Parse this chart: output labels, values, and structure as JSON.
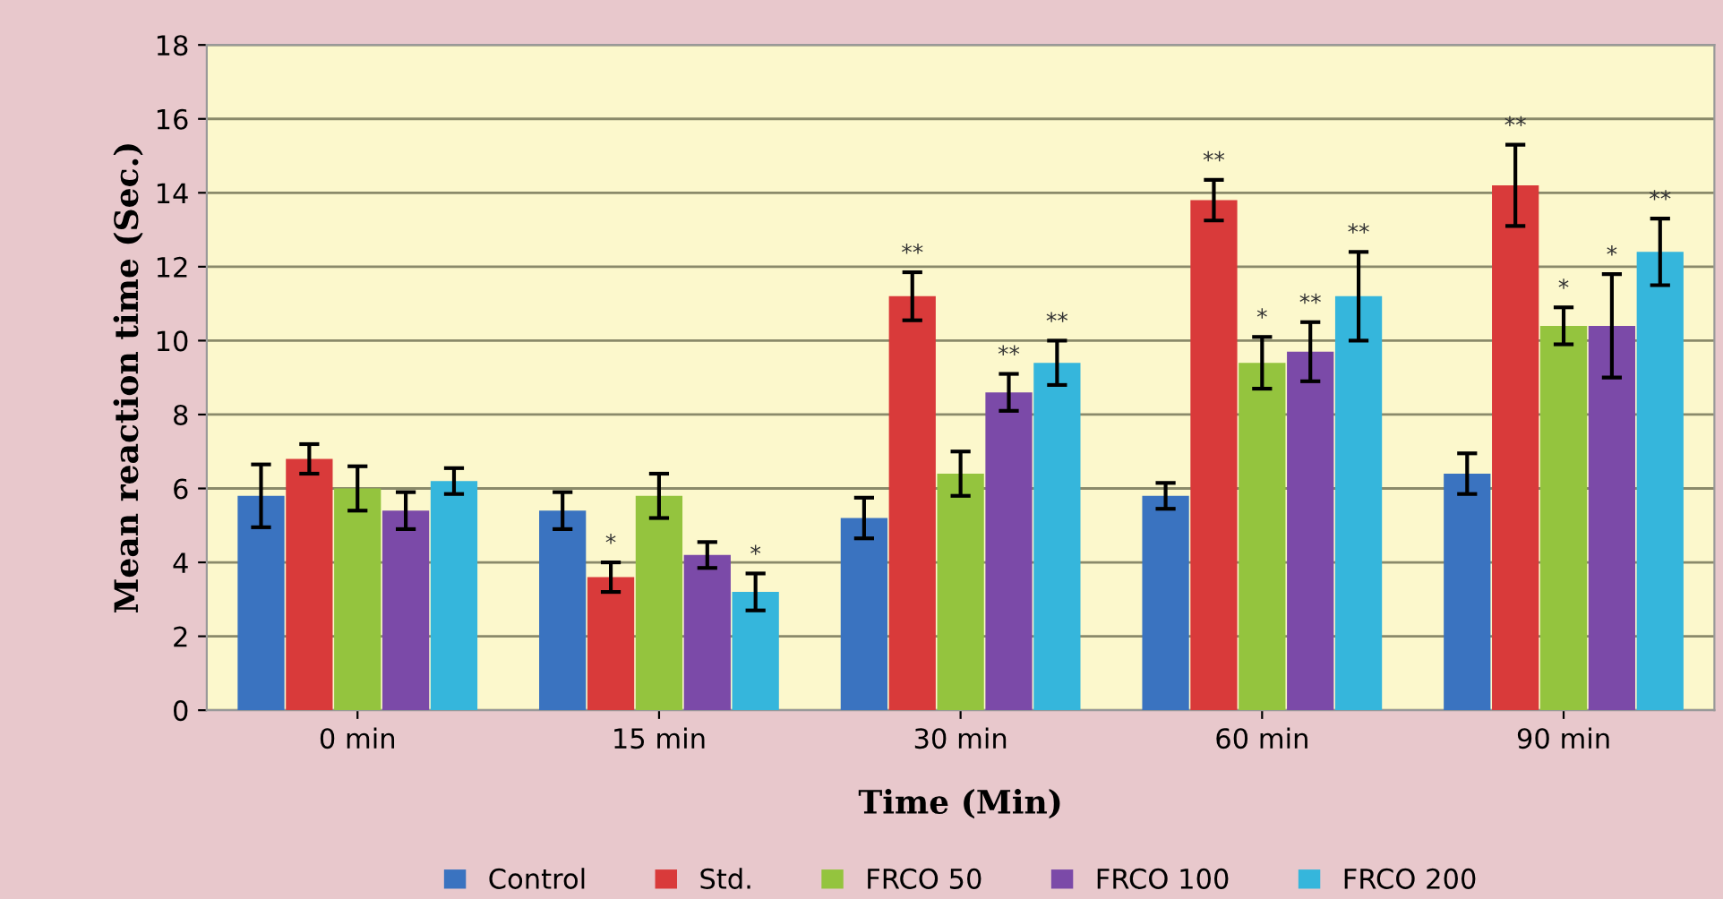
{
  "chart_data": {
    "type": "bar",
    "xlabel": "Time (Min)",
    "ylabel": "Mean reaction time (Sec.)",
    "categories": [
      "0 min",
      "15 min",
      "30 min",
      "60 min",
      "90 min"
    ],
    "ylim": [
      0,
      18
    ],
    "yticks": [
      0,
      2,
      4,
      6,
      8,
      10,
      12,
      14,
      16,
      18
    ],
    "grid": "y",
    "legend": "bottom",
    "series": [
      {
        "name": "Control",
        "color": "#3a73c0",
        "values": [
          5.8,
          5.4,
          5.2,
          5.8,
          6.4
        ],
        "errors": [
          0.85,
          0.5,
          0.55,
          0.35,
          0.55
        ],
        "value_labels": [
          null,
          null,
          null,
          null,
          null
        ]
      },
      {
        "name": "Std.",
        "color": "#d93a3a",
        "values": [
          6.8,
          3.6,
          11.2,
          13.8,
          14.2
        ],
        "errors": [
          0.4,
          0.4,
          0.65,
          0.55,
          1.1
        ],
        "value_labels": [
          null,
          "*",
          "**",
          "**",
          "**"
        ]
      },
      {
        "name": "FRCO 50",
        "color": "#94c43e",
        "values": [
          6.0,
          5.8,
          6.4,
          9.4,
          10.4
        ],
        "errors": [
          0.6,
          0.6,
          0.6,
          0.7,
          0.5
        ],
        "value_labels": [
          null,
          null,
          null,
          "*",
          "*"
        ]
      },
      {
        "name": "FRCO 100",
        "color": "#7b4aa8",
        "values": [
          5.4,
          4.2,
          8.6,
          9.7,
          10.4
        ],
        "errors": [
          0.5,
          0.35,
          0.5,
          0.8,
          1.4
        ],
        "value_labels": [
          null,
          null,
          "**",
          "**",
          "*"
        ]
      },
      {
        "name": "FRCO 200",
        "color": "#35b6dc",
        "values": [
          6.2,
          3.2,
          9.4,
          11.2,
          12.4
        ],
        "errors": [
          0.35,
          0.5,
          0.6,
          1.2,
          0.9
        ],
        "value_labels": [
          null,
          "*",
          "**",
          "**",
          "**"
        ]
      }
    ]
  }
}
